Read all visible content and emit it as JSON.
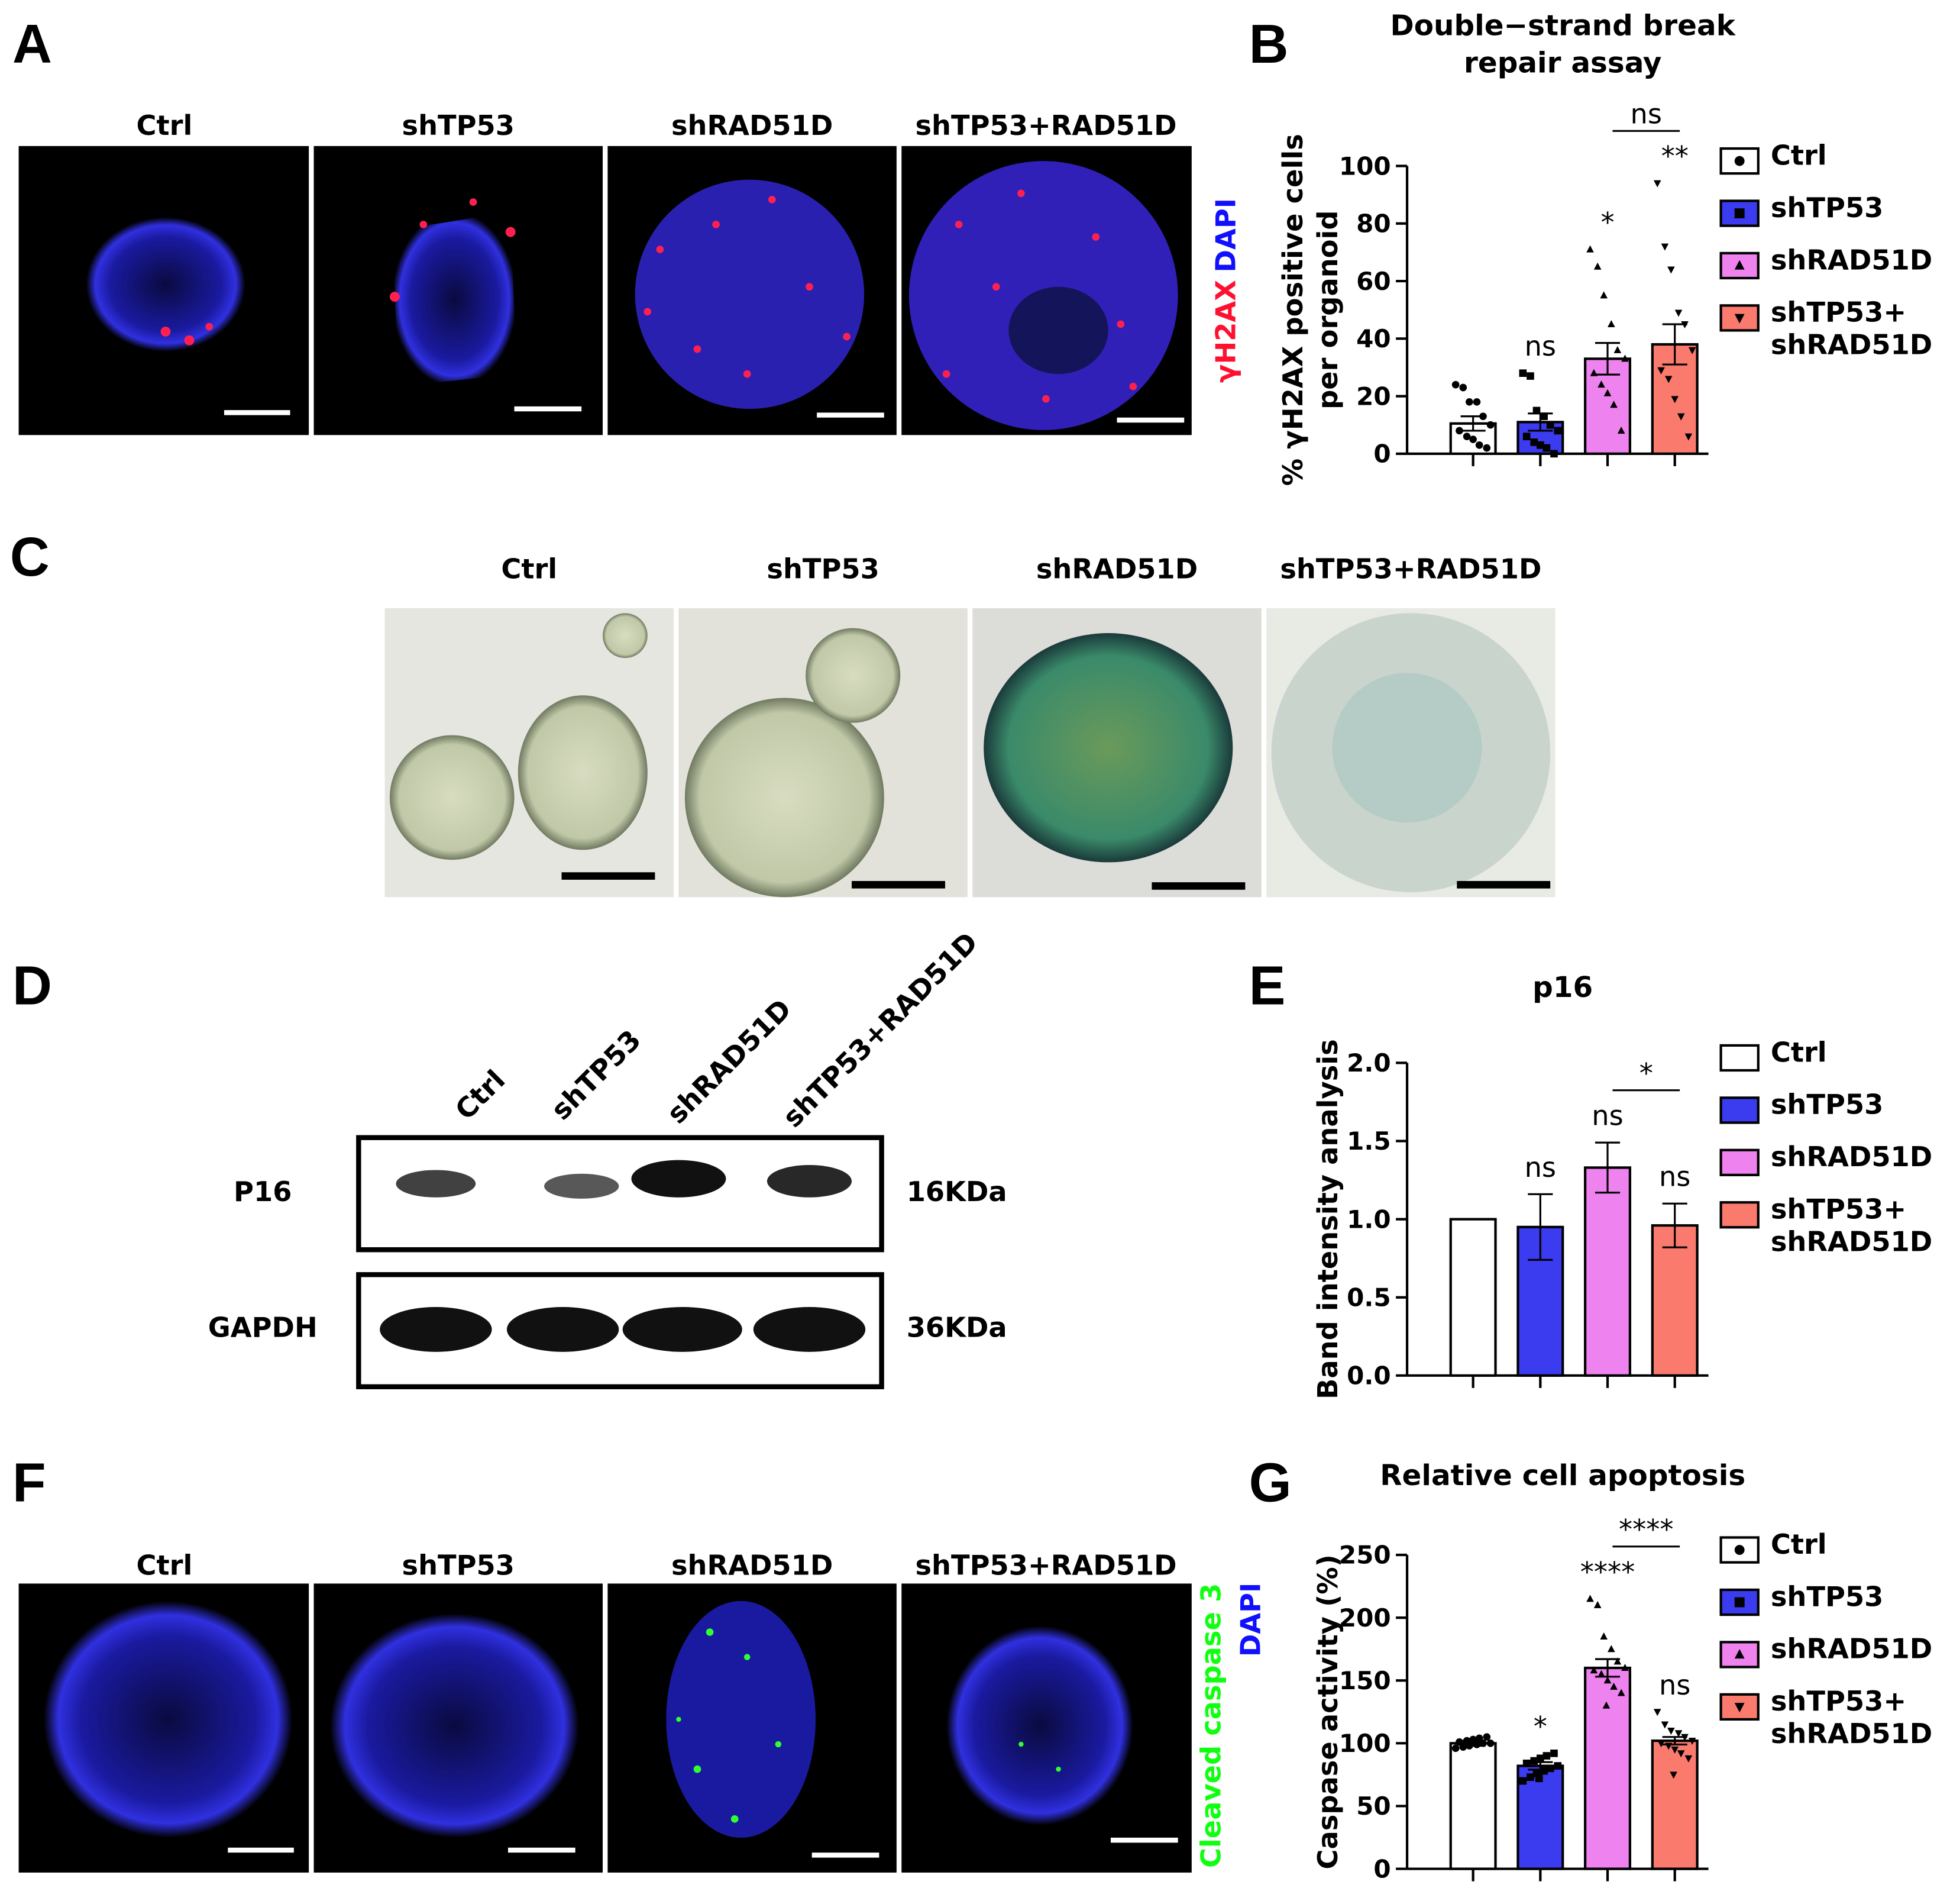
{
  "panels": [
    "A",
    "B",
    "C",
    "D",
    "E",
    "F",
    "G"
  ],
  "panel_a": {
    "conditions": [
      "Ctrl",
      "shTP53",
      "shRAD51D",
      "shTP53+RAD51D"
    ],
    "stain_labels": [
      "γH2AX",
      "DAPI"
    ]
  },
  "panel_c": {
    "conditions": [
      "Ctrl",
      "shTP53",
      "shRAD51D",
      "shTP53+RAD51D"
    ]
  },
  "panel_d": {
    "lanes": [
      "Ctrl",
      "shTP53",
      "shRAD51D",
      "shTP53+RAD51D"
    ],
    "rows": [
      {
        "protein": "P16",
        "size": "16KDa"
      },
      {
        "protein": "GAPDH",
        "size": "36KDa"
      }
    ]
  },
  "panel_f": {
    "conditions": [
      "Ctrl",
      "shTP53",
      "shRAD51D",
      "shTP53+RAD51D"
    ],
    "stain_labels": [
      "Cleaved caspase 3",
      "DAPI"
    ]
  },
  "chart_data": [
    {
      "type": "bar",
      "title": "Double−strand break\nrepair assay",
      "y_label": "% γH2AX positive cells\nper organoid",
      "ylim": [
        0,
        100
      ],
      "yticks": [
        0,
        20,
        40,
        60,
        80,
        100
      ],
      "series": [
        {
          "name": "Ctrl",
          "color": "#ffffff",
          "marker": "circle",
          "values": [
            10.5
          ],
          "errors": [
            2.5
          ],
          "points": [
            24,
            23,
            18,
            18,
            13,
            10,
            8,
            6,
            5,
            3,
            2
          ]
        },
        {
          "name": "shTP53",
          "color": "#3b3bf0",
          "marker": "square",
          "values": [
            11
          ],
          "errors": [
            3
          ],
          "points": [
            28,
            27,
            15,
            13,
            10,
            8,
            6,
            4,
            3,
            2,
            0
          ]
        },
        {
          "name": "shRAD51D",
          "color": "#ee82ee",
          "marker": "triangle",
          "values": [
            33
          ],
          "errors": [
            5.5
          ],
          "points": [
            71,
            65,
            55,
            45,
            36,
            33,
            28,
            24,
            21,
            17,
            8
          ]
        },
        {
          "name": "shTP53+\nshRAD51D",
          "color": "#fa7a6e",
          "marker": "triangle-down",
          "values": [
            38
          ],
          "errors": [
            7
          ],
          "points": [
            94,
            72,
            64,
            49,
            45,
            36,
            29,
            26,
            19,
            13,
            6
          ]
        }
      ],
      "annotations": [
        {
          "series": 1,
          "text": "ns"
        },
        {
          "series": 2,
          "text": "*"
        },
        {
          "series": 3,
          "text": "**"
        }
      ],
      "bracket": {
        "from": 2,
        "to": 3,
        "text": "ns"
      }
    },
    {
      "type": "bar",
      "title": "p16",
      "y_label": "Band intensity analysis",
      "ylim": [
        0,
        2.0
      ],
      "yticks": [
        {
          "value": 0,
          "label": "0.0"
        },
        {
          "value": 0.5,
          "label": "0.5"
        },
        {
          "value": 1.0,
          "label": "1.0"
        },
        {
          "value": 1.5,
          "label": "1.5"
        },
        {
          "value": 2.0,
          "label": "2.0"
        }
      ],
      "series": [
        {
          "name": "Ctrl",
          "color": "#ffffff",
          "values": [
            1.0
          ],
          "errors": [
            0
          ]
        },
        {
          "name": "shTP53",
          "color": "#3b3bf0",
          "values": [
            0.95
          ],
          "errors": [
            0.21
          ]
        },
        {
          "name": "shRAD51D",
          "color": "#ee82ee",
          "values": [
            1.33
          ],
          "errors": [
            0.16
          ]
        },
        {
          "name": "shTP53+\nshRAD51D",
          "color": "#fa7a6e",
          "values": [
            0.96
          ],
          "errors": [
            0.14
          ]
        }
      ],
      "annotations": [
        {
          "series": 1,
          "text": "ns"
        },
        {
          "series": 2,
          "text": "ns"
        },
        {
          "series": 3,
          "text": "ns"
        }
      ],
      "bracket": {
        "from": 2,
        "to": 3,
        "text": "*"
      }
    },
    {
      "type": "bar",
      "title": "Relative cell apoptosis",
      "y_label": "Caspase activity (%)",
      "ylim": [
        0,
        250
      ],
      "yticks": [
        0,
        50,
        100,
        150,
        200,
        250
      ],
      "series": [
        {
          "name": "Ctrl",
          "color": "#ffffff",
          "marker": "circle",
          "values": [
            100
          ],
          "errors": [
            2
          ],
          "points": [
            96,
            97,
            98,
            99,
            100,
            100,
            101,
            102,
            103,
            104,
            105
          ]
        },
        {
          "name": "shTP53",
          "color": "#3b3bf0",
          "marker": "square",
          "values": [
            82
          ],
          "errors": [
            3
          ],
          "points": [
            70,
            73,
            76,
            78,
            80,
            82,
            84,
            86,
            88,
            90,
            92,
            72
          ]
        },
        {
          "name": "shRAD51D",
          "color": "#ee82ee",
          "marker": "triangle",
          "values": [
            160
          ],
          "errors": [
            7
          ],
          "points": [
            215,
            210,
            185,
            175,
            165,
            160,
            158,
            155,
            150,
            145,
            140,
            130
          ]
        },
        {
          "name": "shTP53+\nshRAD51D",
          "color": "#fa7a6e",
          "marker": "triangle-down",
          "values": [
            102
          ],
          "errors": [
            3
          ],
          "points": [
            125,
            115,
            110,
            108,
            105,
            102,
            100,
            98,
            95,
            92,
            88,
            75
          ]
        }
      ],
      "annotations": [
        {
          "series": 1,
          "text": "*"
        },
        {
          "series": 2,
          "text": "****"
        },
        {
          "series": 3,
          "text": "ns"
        }
      ],
      "bracket": {
        "from": 2,
        "to": 3,
        "text": "****"
      }
    }
  ]
}
